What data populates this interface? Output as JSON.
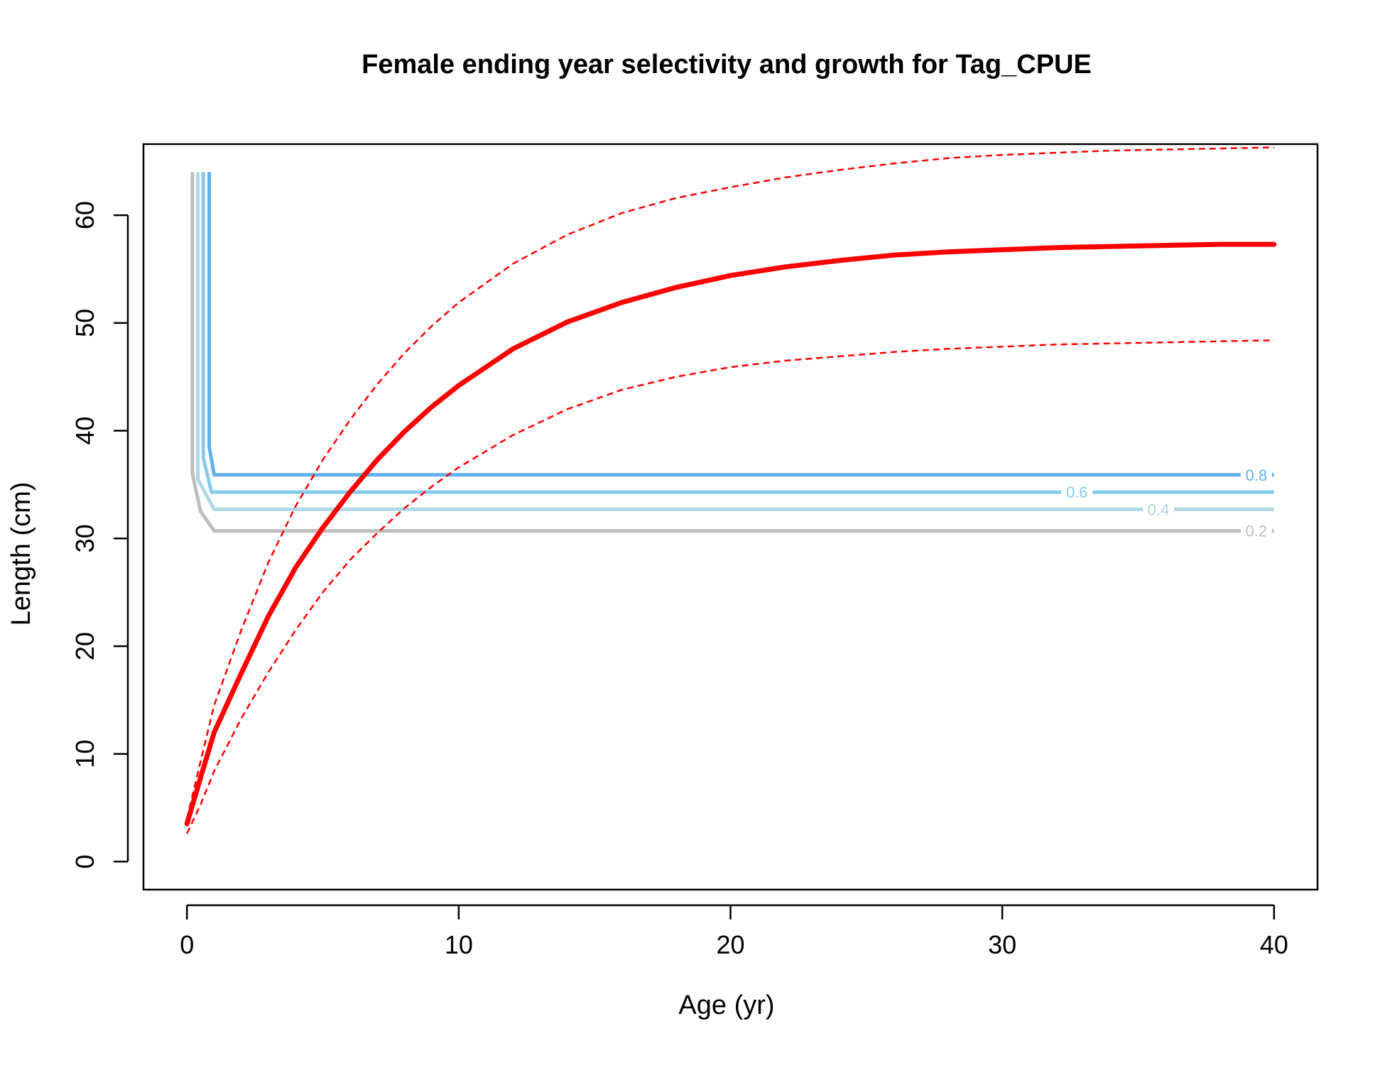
{
  "chart_data": {
    "type": "line",
    "title": "Female ending year selectivity and growth for Tag_CPUE",
    "xlabel": "Age (yr)",
    "ylabel": "Length (cm)",
    "xlim": [
      -1.6,
      41.6
    ],
    "ylim": [
      -2.6,
      66.6
    ],
    "x_ticks": [
      0,
      10,
      20,
      30,
      40
    ],
    "y_ticks": [
      0,
      10,
      20,
      30,
      40,
      50,
      60
    ],
    "grid": false,
    "legend": "none",
    "colors": {
      "growth": "#ff0000",
      "contour_0.8": "#63b0ea",
      "contour_0.6": "#87cbeb",
      "contour_0.4": "#add8e6",
      "contour_0.2": "#bebebe"
    },
    "growth": {
      "mean": {
        "x": [
          0,
          0.5,
          1,
          2,
          3,
          4,
          5,
          6,
          7,
          8,
          9,
          10,
          12,
          14,
          16,
          18,
          20,
          22,
          24,
          26,
          28,
          30,
          32,
          34,
          36,
          38,
          40
        ],
        "y": [
          3.5,
          7.8,
          12.0,
          17.5,
          22.8,
          27.3,
          31.0,
          34.3,
          37.3,
          39.9,
          42.2,
          44.2,
          47.6,
          50.1,
          51.9,
          53.3,
          54.4,
          55.2,
          55.8,
          56.3,
          56.6,
          56.8,
          57.0,
          57.1,
          57.2,
          57.3,
          57.3
        ]
      },
      "upper": {
        "x": [
          0,
          0.5,
          1,
          2,
          3,
          4,
          5,
          6,
          7,
          8,
          9,
          10,
          12,
          14,
          16,
          18,
          20,
          22,
          24,
          26,
          28,
          30,
          32,
          34,
          36,
          38,
          40
        ],
        "y": [
          4.0,
          9.3,
          14.5,
          21.5,
          27.8,
          33.0,
          37.3,
          41.0,
          44.3,
          47.2,
          49.7,
          51.9,
          55.5,
          58.2,
          60.2,
          61.6,
          62.6,
          63.5,
          64.2,
          64.8,
          65.3,
          65.6,
          65.8,
          66.0,
          66.1,
          66.2,
          66.3
        ]
      },
      "lower": {
        "x": [
          0,
          0.5,
          1,
          2,
          3,
          4,
          5,
          6,
          7,
          8,
          9,
          10,
          12,
          14,
          16,
          18,
          20,
          22,
          24,
          26,
          28,
          30,
          32,
          34,
          36,
          38,
          40
        ],
        "y": [
          2.6,
          5.3,
          8.4,
          13.3,
          17.6,
          21.5,
          25.0,
          28.0,
          30.5,
          32.8,
          34.8,
          36.6,
          39.6,
          42.0,
          43.8,
          45.0,
          45.9,
          46.5,
          46.9,
          47.3,
          47.6,
          47.8,
          48.0,
          48.1,
          48.2,
          48.3,
          48.4
        ]
      }
    },
    "selectivity_contours": [
      {
        "level": "0.8",
        "vertical_x": 0.82,
        "plateau_y": 35.9,
        "end_x": 40,
        "points": [
          [
            0.82,
            64
          ],
          [
            0.82,
            38.5
          ],
          [
            1.0,
            35.9
          ],
          [
            40,
            35.9
          ]
        ]
      },
      {
        "level": "0.6",
        "vertical_x": 0.6,
        "plateau_y": 34.3,
        "end_x": 40,
        "points": [
          [
            0.6,
            64
          ],
          [
            0.6,
            37.5
          ],
          [
            0.9,
            34.3
          ],
          [
            40,
            34.3
          ]
        ]
      },
      {
        "level": "0.4",
        "vertical_x": 0.4,
        "plateau_y": 32.7,
        "end_x": 40,
        "points": [
          [
            0.4,
            64
          ],
          [
            0.4,
            35.5
          ],
          [
            1.0,
            32.7
          ],
          [
            40,
            32.7
          ]
        ]
      },
      {
        "level": "0.2",
        "vertical_x": 0.2,
        "plateau_y": 30.7,
        "end_x": 40,
        "points": [
          [
            0.2,
            64
          ],
          [
            0.2,
            36.0
          ],
          [
            0.5,
            32.5
          ],
          [
            1.0,
            30.7
          ],
          [
            40,
            30.7
          ]
        ]
      }
    ],
    "contour_label_positions": [
      {
        "level": "0.8",
        "x": 40.0,
        "y": 35.9
      },
      {
        "level": "0.6",
        "x": 33.4,
        "y": 34.3
      },
      {
        "level": "0.4",
        "x": 36.4,
        "y": 32.7
      },
      {
        "level": "0.2",
        "x": 40.0,
        "y": 30.7
      }
    ]
  }
}
